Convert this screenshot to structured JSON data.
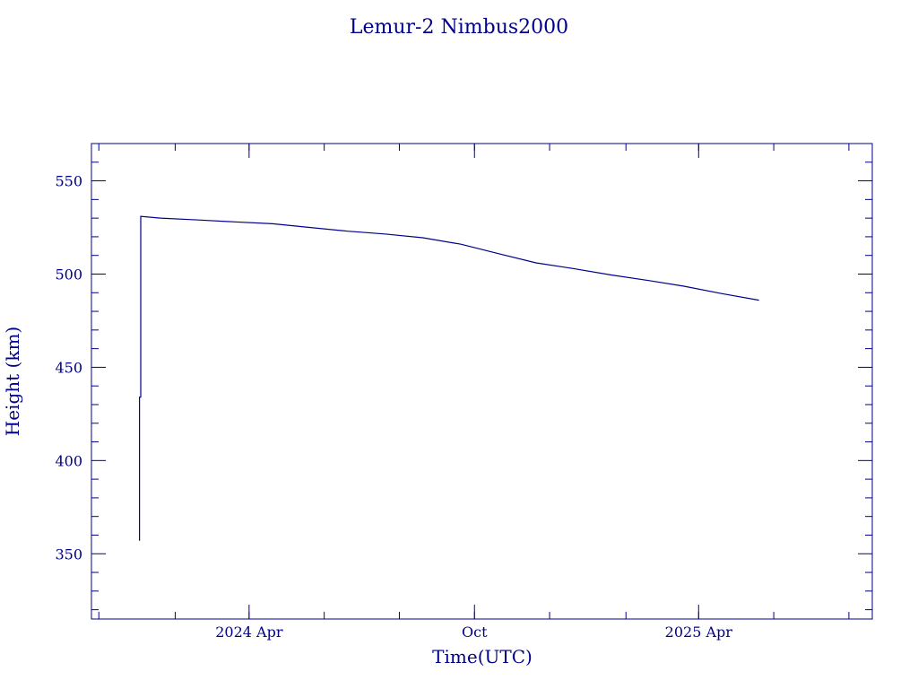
{
  "chart_data": {
    "type": "line",
    "title": "Lemur-2 Nimbus2000",
    "xlabel": "Time(UTC)",
    "ylabel": "Height (km)",
    "xlim": [
      "2023-11-25",
      "2025-08-20"
    ],
    "ylim": [
      315,
      570
    ],
    "yticks": [
      350,
      400,
      450,
      500,
      550
    ],
    "xticks": [
      {
        "date": "2024-04-01",
        "label": "2024 Apr"
      },
      {
        "date": "2024-10-01",
        "label": "Oct"
      },
      {
        "date": "2025-04-01",
        "label": "2025 Apr"
      }
    ],
    "grid": false,
    "color": "#00008b",
    "series": [
      {
        "points": [
          {
            "x": "2024-01-03",
            "y": 357
          },
          {
            "x": "2024-01-03",
            "y": 434
          },
          {
            "x": "2024-01-04",
            "y": 434
          },
          {
            "x": "2024-01-04",
            "y": 531
          },
          {
            "x": "2024-01-20",
            "y": 530
          },
          {
            "x": "2024-02-20",
            "y": 529
          },
          {
            "x": "2024-03-20",
            "y": 528
          },
          {
            "x": "2024-04-20",
            "y": 527
          },
          {
            "x": "2024-05-20",
            "y": 525
          },
          {
            "x": "2024-06-20",
            "y": 523
          },
          {
            "x": "2024-07-20",
            "y": 521.5
          },
          {
            "x": "2024-08-20",
            "y": 519.5
          },
          {
            "x": "2024-09-20",
            "y": 516
          },
          {
            "x": "2024-10-20",
            "y": 511
          },
          {
            "x": "2024-11-20",
            "y": 506
          },
          {
            "x": "2024-12-20",
            "y": 503
          },
          {
            "x": "2025-01-20",
            "y": 499.5
          },
          {
            "x": "2025-02-20",
            "y": 496.5
          },
          {
            "x": "2025-03-20",
            "y": 493.5
          },
          {
            "x": "2025-04-20",
            "y": 489.5
          },
          {
            "x": "2025-05-20",
            "y": 486
          }
        ]
      }
    ]
  }
}
